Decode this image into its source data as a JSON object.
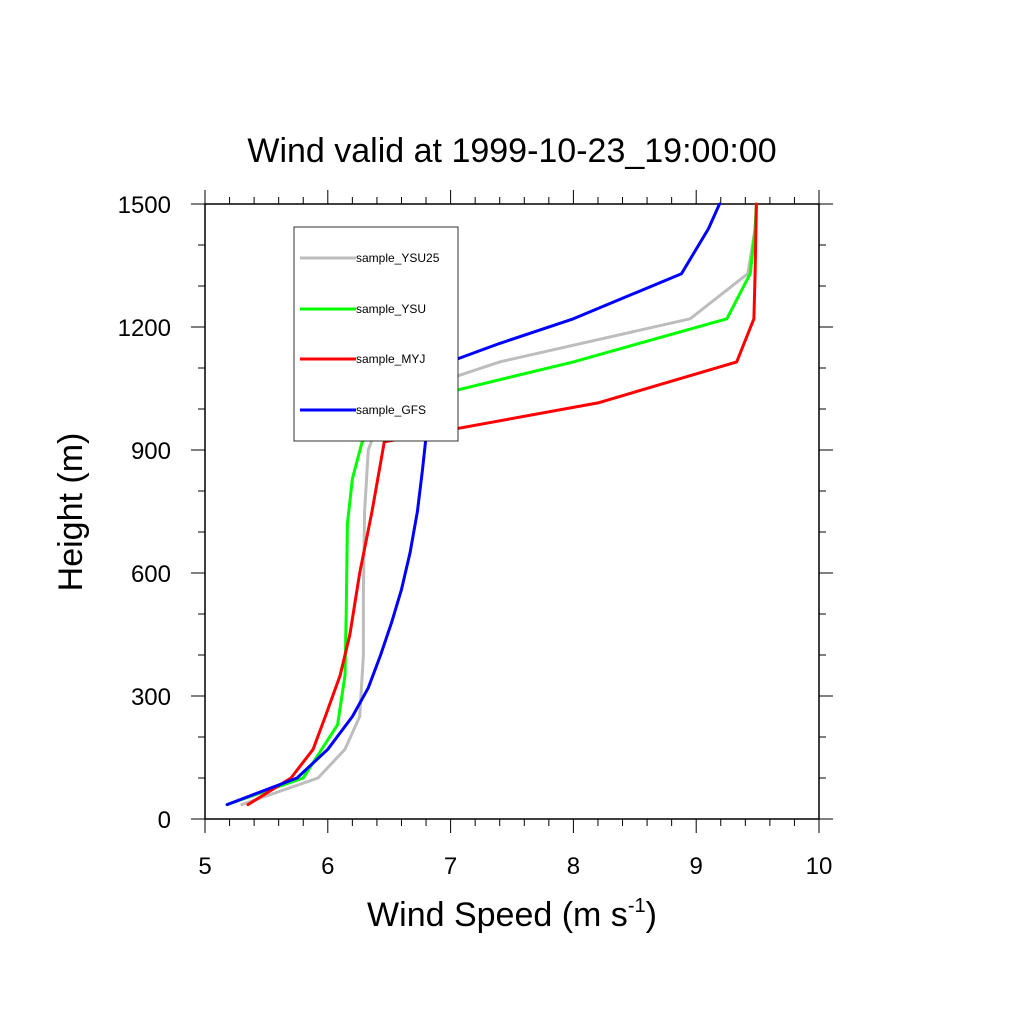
{
  "chart_data": {
    "type": "line",
    "title": "Wind valid at 1999-10-23_19:00:00",
    "xlabel": "Wind Speed (m s",
    "xlabel_sup": "-1",
    "xlabel_end": ")",
    "ylabel": "Height (m)",
    "xlim": [
      5,
      10
    ],
    "ylim": [
      0,
      1500
    ],
    "xticks": [
      5,
      6,
      7,
      8,
      9,
      10
    ],
    "yticks": [
      0,
      300,
      600,
      900,
      1200,
      1500
    ],
    "xtick_labels": [
      "5",
      "6",
      "7",
      "8",
      "9",
      "10"
    ],
    "ytick_labels": [
      "0",
      "300",
      "600",
      "900",
      "1200",
      "1500"
    ],
    "grid": false,
    "legend_position": "top-left",
    "series": [
      {
        "name": "sample_YSU25",
        "color": "#bdbdbd",
        "points": [
          [
            5.3,
            35
          ],
          [
            5.92,
            100
          ],
          [
            6.14,
            170
          ],
          [
            6.26,
            250
          ],
          [
            6.29,
            400
          ],
          [
            6.29,
            550
          ],
          [
            6.3,
            750
          ],
          [
            6.33,
            900
          ],
          [
            6.47,
            1015
          ],
          [
            6.75,
            1050
          ],
          [
            7.4,
            1115
          ],
          [
            8.95,
            1220
          ],
          [
            9.42,
            1330
          ],
          [
            9.48,
            1440
          ],
          [
            9.49,
            1500
          ]
        ]
      },
      {
        "name": "sample_YSU",
        "color": "#00ff00",
        "points": [
          [
            5.18,
            35
          ],
          [
            5.8,
            100
          ],
          [
            6.08,
            230
          ],
          [
            6.14,
            350
          ],
          [
            6.15,
            500
          ],
          [
            6.16,
            720
          ],
          [
            6.2,
            830
          ],
          [
            6.28,
            920
          ],
          [
            6.62,
            1015
          ],
          [
            8.0,
            1115
          ],
          [
            9.25,
            1220
          ],
          [
            9.44,
            1330
          ],
          [
            9.48,
            1440
          ],
          [
            9.49,
            1500
          ]
        ]
      },
      {
        "name": "sample_MYJ",
        "color": "#ff0000",
        "points": [
          [
            5.35,
            35
          ],
          [
            5.7,
            100
          ],
          [
            5.88,
            170
          ],
          [
            5.98,
            250
          ],
          [
            6.1,
            350
          ],
          [
            6.18,
            450
          ],
          [
            6.26,
            600
          ],
          [
            6.36,
            750
          ],
          [
            6.46,
            920
          ],
          [
            8.2,
            1015
          ],
          [
            9.33,
            1115
          ],
          [
            9.47,
            1220
          ],
          [
            9.48,
            1330
          ],
          [
            9.49,
            1500
          ]
        ]
      },
      {
        "name": "sample_GFS",
        "color": "#0000ff",
        "points": [
          [
            5.18,
            35
          ],
          [
            5.75,
            100
          ],
          [
            6.0,
            170
          ],
          [
            6.2,
            250
          ],
          [
            6.33,
            320
          ],
          [
            6.43,
            400
          ],
          [
            6.52,
            480
          ],
          [
            6.6,
            560
          ],
          [
            6.67,
            650
          ],
          [
            6.73,
            750
          ],
          [
            6.77,
            850
          ],
          [
            6.83,
            1015
          ],
          [
            6.99,
            1115
          ],
          [
            7.4,
            1160
          ],
          [
            8.0,
            1220
          ],
          [
            8.88,
            1330
          ],
          [
            9.1,
            1440
          ],
          [
            9.19,
            1500
          ]
        ]
      }
    ]
  }
}
